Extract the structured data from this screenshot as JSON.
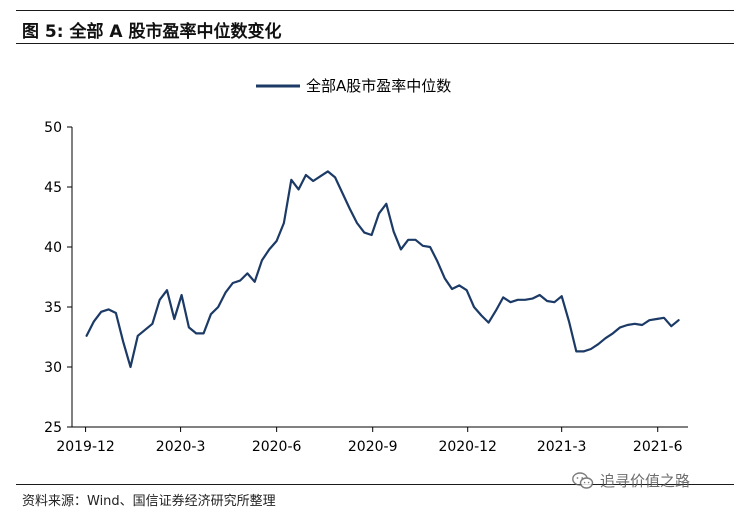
{
  "figure_title": "图 5:  全部 A 股市盈率中位数变化",
  "source_note": "资料来源：Wind、国信证券经济研究所整理",
  "watermark": "追寻价值之路",
  "colors": {
    "series": "#1c3a66",
    "axis": "#000000",
    "rule": "#1b1b1b"
  },
  "chart_data": {
    "type": "line",
    "title": "",
    "xlabel": "",
    "ylabel": "",
    "ylim": [
      25,
      50
    ],
    "yticks": [
      25,
      30,
      35,
      40,
      45,
      50
    ],
    "x_tick_labels": [
      "2019-12",
      "2020-3",
      "2020-6",
      "2020-9",
      "2020-12",
      "2021-3",
      "2021-6"
    ],
    "x_tick_dates": [
      "2019-12",
      "2020-03",
      "2020-06",
      "2020-09",
      "2020-12",
      "2021-03",
      "2021-06"
    ],
    "legend_placement": "top-center",
    "grid": false,
    "series": [
      {
        "name": "全部A股市盈率中位数",
        "x": [
          "2019-12-02",
          "2019-12-09",
          "2019-12-16",
          "2019-12-23",
          "2019-12-30",
          "2020-01-06",
          "2020-01-13",
          "2020-01-20",
          "2020-02-03",
          "2020-02-10",
          "2020-02-17",
          "2020-02-24",
          "2020-03-02",
          "2020-03-09",
          "2020-03-16",
          "2020-03-23",
          "2020-03-30",
          "2020-04-06",
          "2020-04-13",
          "2020-04-20",
          "2020-04-27",
          "2020-05-04",
          "2020-05-11",
          "2020-05-18",
          "2020-05-25",
          "2020-06-01",
          "2020-06-08",
          "2020-06-15",
          "2020-06-22",
          "2020-06-29",
          "2020-07-06",
          "2020-07-13",
          "2020-07-20",
          "2020-07-27",
          "2020-08-03",
          "2020-08-10",
          "2020-08-17",
          "2020-08-24",
          "2020-08-31",
          "2020-09-07",
          "2020-09-14",
          "2020-09-21",
          "2020-09-28",
          "2020-10-05",
          "2020-10-12",
          "2020-10-19",
          "2020-10-26",
          "2020-11-02",
          "2020-11-09",
          "2020-11-16",
          "2020-11-23",
          "2020-11-30",
          "2020-12-07",
          "2020-12-14",
          "2020-12-21",
          "2020-12-28",
          "2021-01-04",
          "2021-01-11",
          "2021-01-18",
          "2021-01-25",
          "2021-02-01",
          "2021-02-08",
          "2021-02-15",
          "2021-02-22",
          "2021-03-01",
          "2021-03-08",
          "2021-03-15",
          "2021-03-22",
          "2021-03-29",
          "2021-04-05",
          "2021-04-12",
          "2021-04-19",
          "2021-04-26",
          "2021-05-03",
          "2021-05-10",
          "2021-05-17",
          "2021-05-24",
          "2021-05-31",
          "2021-06-07",
          "2021-06-14",
          "2021-06-21"
        ],
        "values": [
          32.6,
          33.8,
          34.6,
          34.8,
          34.5,
          32.1,
          30.0,
          32.6,
          33.6,
          35.6,
          36.4,
          34.0,
          36.0,
          33.3,
          32.8,
          32.8,
          34.4,
          35.0,
          36.2,
          37.0,
          37.2,
          37.8,
          37.1,
          38.9,
          39.8,
          40.5,
          42.0,
          45.6,
          44.8,
          46.0,
          45.5,
          45.9,
          46.3,
          45.8,
          44.5,
          43.2,
          42.0,
          41.2,
          41.0,
          42.8,
          43.6,
          41.3,
          39.8,
          40.6,
          40.6,
          40.1,
          40.0,
          38.8,
          37.4,
          36.5,
          36.8,
          36.4,
          35.0,
          34.3,
          33.7,
          34.7,
          35.8,
          35.4,
          35.6,
          35.6,
          35.7,
          36.0,
          35.5,
          35.4,
          35.9,
          33.8,
          31.3,
          31.3,
          31.5,
          31.9,
          32.4,
          32.8,
          33.3,
          33.5,
          33.6,
          33.5,
          33.9,
          34.0,
          34.1,
          33.4,
          33.9
        ]
      }
    ]
  }
}
